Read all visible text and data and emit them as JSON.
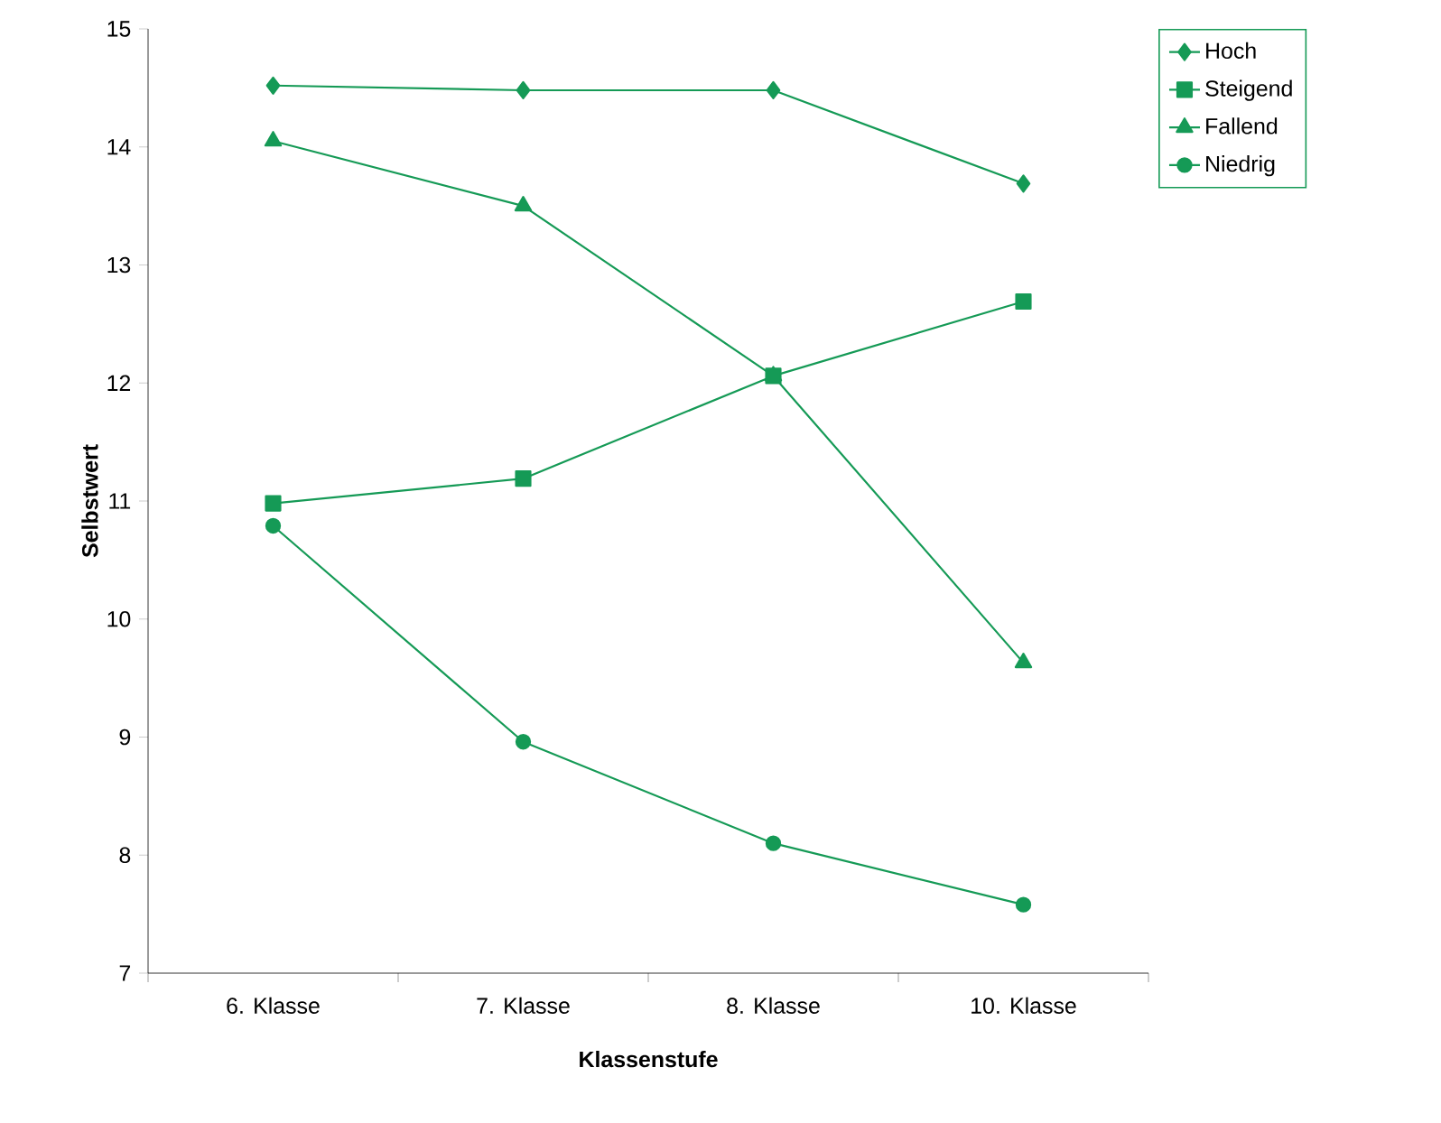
{
  "chart_data": {
    "type": "line",
    "xlabel": "Klassenstufe",
    "ylabel": "Selbstwert",
    "categories": [
      "6. Klasse",
      "7. Klasse",
      "8. Klasse",
      "10. Klasse"
    ],
    "ylim": [
      7,
      15
    ],
    "yticks": [
      7,
      8,
      9,
      10,
      11,
      12,
      13,
      14,
      15
    ],
    "grid": false,
    "legend": "top right",
    "line_style": "solid",
    "series": [
      {
        "name": "Hoch",
        "color": "#159a56",
        "marker": "diamond",
        "values": [
          14.52,
          14.48,
          14.48,
          13.69
        ]
      },
      {
        "name": "Steigend",
        "color": "#159a56",
        "marker": "square",
        "values": [
          10.98,
          11.19,
          12.06,
          12.69
        ]
      },
      {
        "name": "Fallend",
        "color": "#159a56",
        "marker": "triangle",
        "values": [
          14.05,
          13.5,
          12.06,
          9.63
        ]
      },
      {
        "name": "Niedrig",
        "color": "#159a56",
        "marker": "circle",
        "values": [
          10.79,
          8.96,
          8.1,
          7.58
        ]
      }
    ]
  }
}
